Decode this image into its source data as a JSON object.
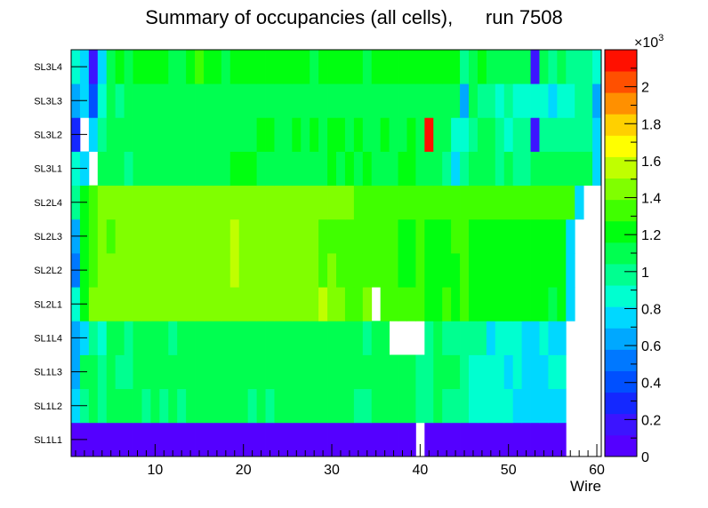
{
  "chart_data": {
    "type": "heatmap",
    "title": "Summary of occupancies (all cells),      run 7508",
    "xlabel": "Wire",
    "ylabel": "",
    "x_range": [
      0.5,
      60.5
    ],
    "x_ticks": [
      10,
      20,
      30,
      40,
      50,
      60
    ],
    "rows": [
      "SL1L1",
      "SL1L2",
      "SL1L3",
      "SL1L4",
      "SL2L1",
      "SL2L2",
      "SL2L3",
      "SL2L4",
      "SL3L1",
      "SL3L2",
      "SL3L3",
      "SL3L4"
    ],
    "z_range": [
      0,
      2200
    ],
    "z_exponent_label": "×10",
    "z_exponent_power": "3",
    "z_ticks": [
      {
        "v": 0,
        "label": "0"
      },
      {
        "v": 200,
        "label": "0.2"
      },
      {
        "v": 400,
        "label": "0.4"
      },
      {
        "v": 600,
        "label": "0.6"
      },
      {
        "v": 800,
        "label": "0.8"
      },
      {
        "v": 1000,
        "label": "1"
      },
      {
        "v": 1200,
        "label": "1.2"
      },
      {
        "v": 1400,
        "label": "1.4"
      },
      {
        "v": 1600,
        "label": "1.6"
      },
      {
        "v": 1800,
        "label": "1.8"
      },
      {
        "v": 2000,
        "label": "2"
      }
    ],
    "palette": [
      "#5400ff",
      "#3c14ff",
      "#1428ff",
      "#0050ff",
      "#0078ff",
      "#00a8ff",
      "#00d8ff",
      "#00ffd0",
      "#00ff90",
      "#00ff50",
      "#00ff10",
      "#40ff00",
      "#80ff00",
      "#c0ff00",
      "#ffff00",
      "#ffd000",
      "#ff9000",
      "#ff5000",
      "#ff1000"
    ],
    "values": [
      [
        80,
        80,
        80,
        80,
        80,
        80,
        80,
        80,
        80,
        80,
        80,
        80,
        80,
        80,
        80,
        80,
        80,
        80,
        80,
        80,
        80,
        80,
        80,
        80,
        80,
        80,
        80,
        80,
        80,
        80,
        80,
        80,
        80,
        80,
        80,
        80,
        80,
        80,
        80,
        0,
        80,
        80,
        80,
        80,
        80,
        80,
        80,
        80,
        80,
        80,
        80,
        80,
        80,
        80,
        80,
        80,
        0,
        0,
        0,
        0
      ],
      [
        700,
        1000,
        1120,
        980,
        1150,
        1100,
        1080,
        1050,
        1000,
        1100,
        1030,
        1060,
        1040,
        1130,
        1070,
        1060,
        1050,
        1100,
        1100,
        1060,
        1040,
        1070,
        1000,
        1050,
        1080,
        1100,
        1100,
        1080,
        1060,
        1100,
        1080,
        1050,
        1040,
        1000,
        1080,
        1100,
        1080,
        1050,
        1080,
        1030,
        960,
        1050,
        1000,
        980,
        950,
        900,
        850,
        860,
        880,
        820,
        800,
        780,
        800,
        780,
        800,
        800,
        0,
        0,
        0,
        0
      ],
      [
        650,
        1050,
        1100,
        980,
        1050,
        1000,
        1000,
        1100,
        1100,
        1050,
        1050,
        1080,
        1050,
        1100,
        1100,
        1080,
        1120,
        1100,
        1050,
        1050,
        1130,
        1070,
        1080,
        1050,
        1080,
        1120,
        1100,
        1120,
        1050,
        1050,
        1100,
        1080,
        1100,
        1050,
        1080,
        1100,
        1080,
        1060,
        1050,
        1000,
        1000,
        1060,
        1100,
        1050,
        1000,
        900,
        860,
        880,
        880,
        800,
        820,
        780,
        800,
        800,
        820,
        840,
        0,
        0,
        0,
        0
      ],
      [
        650,
        750,
        1030,
        900,
        1060,
        1060,
        1000,
        1050,
        1100,
        1080,
        1050,
        1030,
        1080,
        1060,
        1100,
        1100,
        1080,
        1120,
        1100,
        1090,
        1120,
        1100,
        1060,
        1080,
        1060,
        1120,
        1100,
        1120,
        1100,
        1060,
        1100,
        1080,
        1060,
        1040,
        1080,
        1050,
        0,
        0,
        0,
        0,
        1020,
        1050,
        1040,
        1000,
        1000,
        960,
        950,
        800,
        880,
        860,
        880,
        800,
        800,
        820,
        750,
        800,
        0,
        0,
        0,
        0
      ],
      [
        900,
        1240,
        1400,
        1420,
        1420,
        1420,
        1400,
        1400,
        1400,
        1450,
        1400,
        1400,
        1450,
        1400,
        1450,
        1450,
        1450,
        1450,
        1450,
        1450,
        1450,
        1450,
        1450,
        1400,
        1400,
        1400,
        1400,
        1400,
        1540,
        1400,
        1420,
        1360,
        1320,
        1400,
        0,
        1360,
        1320,
        1280,
        1300,
        1320,
        1260,
        1260,
        1280,
        1200,
        1300,
        1200,
        1240,
        1240,
        1200,
        1200,
        1180,
        1220,
        1220,
        1250,
        1120,
        1200,
        700,
        0,
        0,
        0
      ],
      [
        500,
        1220,
        1300,
        1400,
        1420,
        1420,
        1420,
        1400,
        1400,
        1420,
        1400,
        1450,
        1450,
        1450,
        1450,
        1400,
        1450,
        1500,
        1600,
        1450,
        1400,
        1400,
        1400,
        1400,
        1400,
        1450,
        1400,
        1420,
        1360,
        1400,
        1300,
        1320,
        1280,
        1360,
        1300,
        1300,
        1280,
        1240,
        1260,
        1300,
        1260,
        1240,
        1240,
        1220,
        1300,
        1260,
        1240,
        1200,
        1260,
        1240,
        1240,
        1250,
        1200,
        1200,
        1250,
        1200,
        700,
        0,
        0,
        0
      ],
      [
        600,
        1260,
        1300,
        1400,
        1380,
        1400,
        1420,
        1400,
        1400,
        1450,
        1450,
        1450,
        1400,
        1450,
        1450,
        1450,
        1400,
        1500,
        1540,
        1450,
        1400,
        1400,
        1400,
        1400,
        1400,
        1400,
        1420,
        1400,
        1340,
        1350,
        1300,
        1320,
        1300,
        1320,
        1340,
        1350,
        1280,
        1260,
        1260,
        1300,
        1240,
        1240,
        1240,
        1300,
        1300,
        1250,
        1240,
        1240,
        1250,
        1240,
        1180,
        1200,
        1200,
        1180,
        1240,
        1240,
        700,
        0,
        0,
        0
      ],
      [
        1000,
        1240,
        1380,
        1400,
        1400,
        1400,
        1400,
        1400,
        1400,
        1400,
        1400,
        1400,
        1420,
        1420,
        1420,
        1450,
        1450,
        1460,
        1450,
        1450,
        1460,
        1460,
        1460,
        1420,
        1420,
        1420,
        1420,
        1440,
        1440,
        1400,
        1400,
        1400,
        1350,
        1350,
        1340,
        1360,
        1300,
        1300,
        1300,
        1340,
        1320,
        1300,
        1300,
        1300,
        1360,
        1350,
        1300,
        1300,
        1300,
        1300,
        1280,
        1300,
        1300,
        1300,
        1300,
        1300,
        1300,
        700,
        0,
        0
      ],
      [
        900,
        750,
        0,
        1050,
        1120,
        1150,
        1000,
        1100,
        1080,
        1100,
        1080,
        1080,
        1100,
        1080,
        1100,
        1150,
        1100,
        1150,
        1200,
        1160,
        1160,
        1100,
        1140,
        1100,
        1100,
        1080,
        1100,
        1140,
        1120,
        1180,
        1150,
        1200,
        1130,
        1180,
        1120,
        1100,
        1110,
        1180,
        1200,
        1140,
        1100,
        1120,
        1040,
        800,
        1000,
        1100,
        1120,
        1050,
        1000,
        1060,
        1000,
        1020,
        1080,
        1060,
        1060,
        1060,
        1080,
        1100,
        1100,
        760
      ],
      [
        300,
        0,
        750,
        1000,
        1100,
        1100,
        1100,
        1150,
        1150,
        1100,
        1100,
        1150,
        1100,
        1150,
        1150,
        1100,
        1150,
        1100,
        1150,
        1150,
        1100,
        1200,
        1200,
        1150,
        1100,
        1200,
        1150,
        1180,
        1150,
        1200,
        1200,
        1150,
        1200,
        1150,
        1150,
        1200,
        1100,
        1150,
        1200,
        1150,
        2100,
        1100,
        1100,
        900,
        900,
        1000,
        1100,
        1100,
        1000,
        900,
        960,
        1000,
        200,
        950,
        950,
        1000,
        1000,
        1000,
        1000,
        760
      ],
      [
        600,
        700,
        350,
        900,
        1100,
        1000,
        1050,
        1100,
        1150,
        1060,
        1100,
        1100,
        1080,
        1050,
        1080,
        1100,
        1100,
        1100,
        1100,
        1100,
        1080,
        1150,
        1100,
        1150,
        1080,
        1150,
        1140,
        1120,
        1080,
        1100,
        1100,
        1150,
        1050,
        1080,
        1050,
        1080,
        1120,
        1080,
        1100,
        1100,
        1100,
        1080,
        1100,
        1100,
        600,
        1050,
        1000,
        950,
        900,
        950,
        900,
        900,
        880,
        880,
        800,
        820,
        900,
        950,
        980,
        600
      ],
      [
        900,
        750,
        150,
        700,
        1050,
        1200,
        1150,
        1200,
        1200,
        1200,
        1200,
        1150,
        1150,
        1200,
        1300,
        1200,
        1200,
        1150,
        1200,
        1200,
        1200,
        1200,
        1200,
        1250,
        1200,
        1200,
        1200,
        1150,
        1200,
        1200,
        1200,
        1200,
        1200,
        1150,
        1200,
        1200,
        1200,
        1250,
        1200,
        1200,
        1160,
        1200,
        1200,
        1200,
        1000,
        1100,
        1200,
        1150,
        1100,
        1150,
        1100,
        1150,
        200,
        1050,
        1000,
        1050,
        1000,
        1000,
        980,
        900
      ]
    ]
  }
}
